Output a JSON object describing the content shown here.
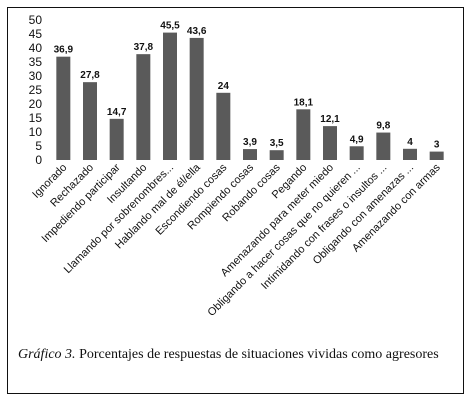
{
  "chart_data": {
    "type": "bar",
    "title": "",
    "xlabel": "",
    "ylabel": "",
    "ylim": [
      0,
      50
    ],
    "yticks": [
      0,
      5,
      10,
      15,
      20,
      25,
      30,
      35,
      40,
      45,
      50
    ],
    "grid": false,
    "categories": [
      "Ignorado",
      "Rechazado",
      "Impediendo participar",
      "Insultando",
      "Llamando por sobrenombres...",
      "Hablando mal de él/ella",
      "Escondiendo cosas",
      "Rompiendo cosas",
      "Robando cosas",
      "Pegando",
      "Amenazando para meter miedo",
      "Obligando a hacer cosas que no quieren ...",
      "Intimidando con frases o insultos ...",
      "Obligando con amenazas ...",
      "Amenazando con armas"
    ],
    "values": [
      36.9,
      27.8,
      14.7,
      37.8,
      45.5,
      43.6,
      24,
      3.9,
      3.5,
      18.1,
      12.1,
      4.9,
      9.8,
      4,
      3
    ],
    "value_labels": [
      "36,9",
      "27,8",
      "14,7",
      "37,8",
      "45,5",
      "43,6",
      "24",
      "3,9",
      "3,5",
      "18,1",
      "12,1",
      "4,9",
      "9,8",
      "4",
      "3"
    ],
    "bar_color": "#5a5a5a"
  },
  "caption": {
    "label": "Gráfico 3.",
    "text": " Porcentajes de respuestas de situaciones vividas como agresores"
  }
}
